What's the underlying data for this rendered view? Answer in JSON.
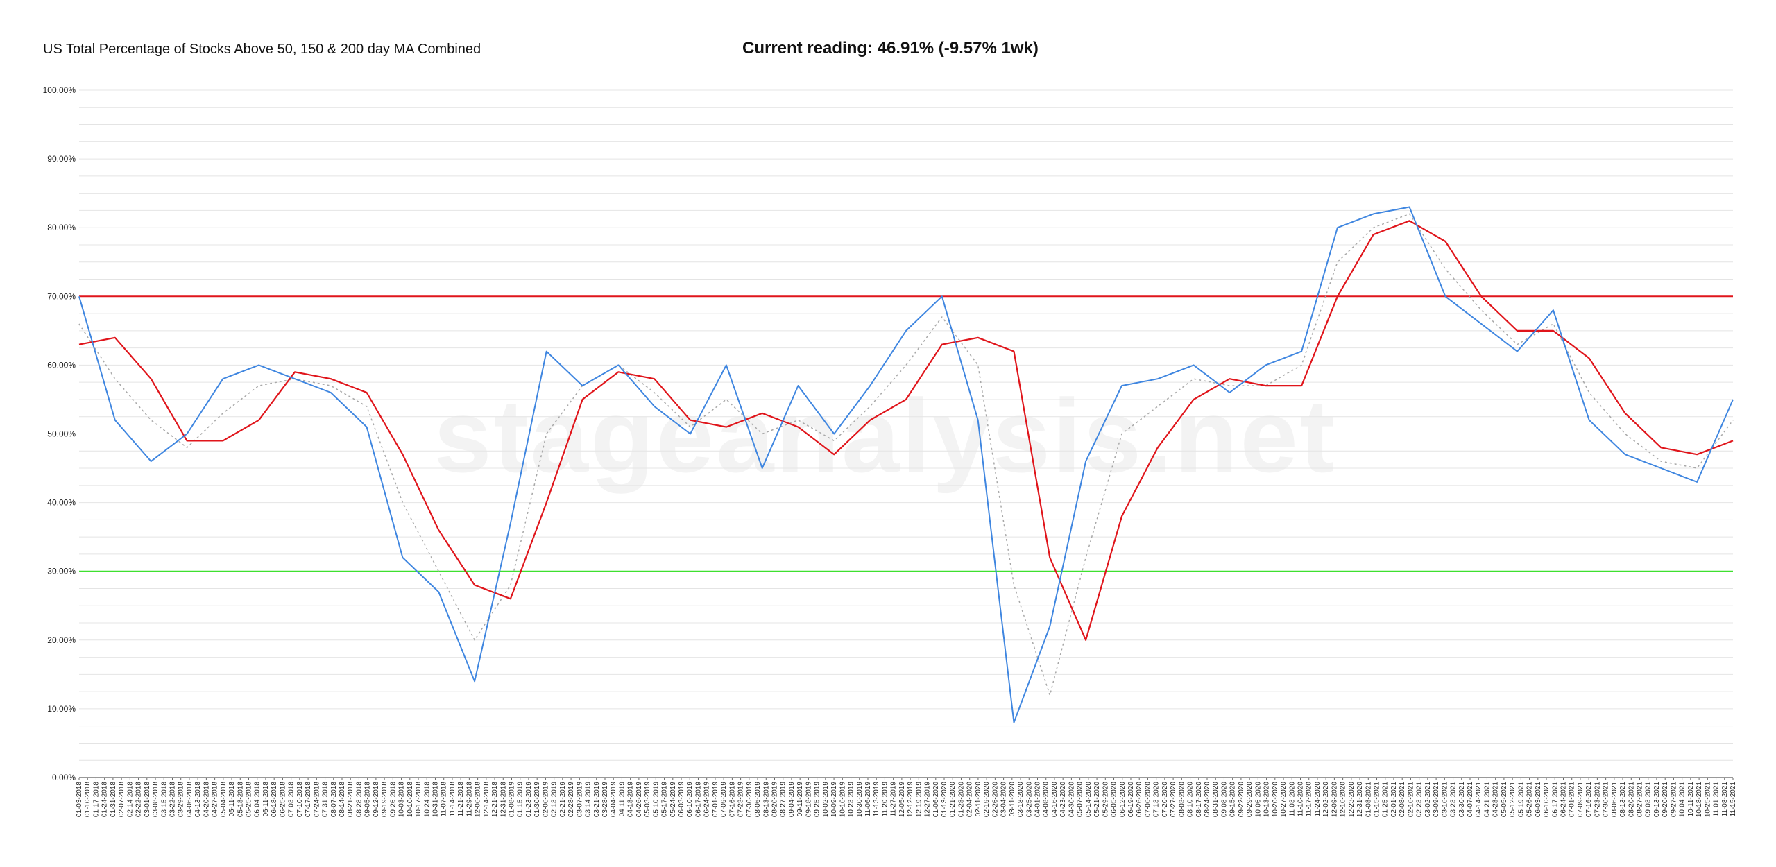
{
  "header": {
    "title": "US Total Percentage of Stocks Above 50, 150 & 200 day MA Combined",
    "current_reading": "Current reading: 46.91% (-9.57% 1wk)"
  },
  "watermark": "stageanalysis.net",
  "colors": {
    "raw": "#3f86e0",
    "ma_red": "#e0151b",
    "ma_dotted": "#a8a8a8",
    "overbought": "#e0151b",
    "oversold": "#3ee02f",
    "grid": "#e4e4e4"
  },
  "chart_data": {
    "type": "line",
    "title": "US Total Percentage of Stocks Above 50, 150 & 200 day MA Combined",
    "ylim": [
      0,
      100
    ],
    "grid": true,
    "y_ticks": [
      "0.00%",
      "10.00%",
      "20.00%",
      "30.00%",
      "40.00%",
      "50.00%",
      "60.00%",
      "70.00%",
      "80.00%",
      "90.00%",
      "100.00%"
    ],
    "reference_lines": [
      {
        "y": 70,
        "color": "#e0151b"
      },
      {
        "y": 30,
        "color": "#3ee02f"
      }
    ],
    "x_tick_labels": [
      "01-03-2018",
      "01-10-2018",
      "01-17-2018",
      "01-24-2018",
      "01-31-2018",
      "02-07-2018",
      "02-14-2018",
      "02-22-2018",
      "03-01-2018",
      "03-08-2018",
      "03-15-2018",
      "03-22-2018",
      "03-29-2018",
      "04-06-2018",
      "04-13-2018",
      "04-20-2018",
      "04-27-2018",
      "05-04-2018",
      "05-11-2018",
      "05-18-2018",
      "05-25-2018",
      "06-04-2018",
      "06-11-2018",
      "06-18-2018",
      "06-25-2018",
      "07-03-2018",
      "07-10-2018",
      "07-17-2018",
      "07-24-2018",
      "07-31-2018",
      "08-07-2018",
      "08-14-2018",
      "08-21-2018",
      "08-28-2018",
      "09-05-2018",
      "09-12-2018",
      "09-19-2018",
      "09-26-2018",
      "10-03-2018",
      "10-10-2018",
      "10-17-2018",
      "10-24-2018",
      "10-31-2018",
      "11-07-2018",
      "11-14-2018",
      "11-21-2018",
      "11-29-2018",
      "12-06-2018",
      "12-14-2018",
      "12-21-2018",
      "12-31-2018",
      "01-08-2019",
      "01-15-2019",
      "01-23-2019",
      "01-30-2019",
      "02-06-2019",
      "02-13-2019",
      "02-21-2019",
      "02-28-2019",
      "03-07-2019",
      "03-14-2019",
      "03-21-2019",
      "03-28-2019",
      "04-04-2019",
      "04-11-2019",
      "04-18-2019",
      "04-26-2019",
      "05-03-2019",
      "05-10-2019",
      "05-17-2019",
      "05-24-2019",
      "06-03-2019",
      "06-10-2019",
      "06-17-2019",
      "06-24-2019",
      "07-01-2019",
      "07-09-2019",
      "07-16-2019",
      "07-23-2019",
      "07-30-2019",
      "08-06-2019",
      "08-13-2019",
      "08-20-2019",
      "08-27-2019",
      "09-04-2019",
      "09-11-2019",
      "09-18-2019",
      "09-25-2019",
      "10-02-2019",
      "10-09-2019",
      "10-16-2019",
      "10-23-2019",
      "10-30-2019",
      "11-06-2019",
      "11-13-2019",
      "11-20-2019",
      "11-27-2019",
      "12-05-2019",
      "12-12-2019",
      "12-19-2019",
      "12-27-2019",
      "01-06-2020",
      "01-13-2020",
      "01-21-2020",
      "01-28-2020",
      "02-04-2020",
      "02-11-2020",
      "02-19-2020",
      "02-26-2020",
      "03-04-2020",
      "03-11-2020",
      "03-18-2020",
      "03-25-2020",
      "04-01-2020",
      "04-08-2020",
      "04-16-2020",
      "04-23-2020",
      "04-30-2020",
      "05-07-2020",
      "05-14-2020",
      "05-21-2020",
      "05-29-2020",
      "06-05-2020",
      "06-12-2020",
      "06-19-2020",
      "06-26-2020",
      "07-06-2020",
      "07-13-2020",
      "07-20-2020",
      "07-27-2020",
      "08-03-2020",
      "08-10-2020",
      "08-17-2020",
      "08-24-2020",
      "08-31-2020",
      "09-08-2020",
      "09-15-2020",
      "09-22-2020",
      "09-29-2020",
      "10-06-2020",
      "10-13-2020",
      "10-20-2020",
      "10-27-2020",
      "11-03-2020",
      "11-10-2020",
      "11-17-2020",
      "11-24-2020",
      "12-02-2020",
      "12-09-2020",
      "12-16-2020",
      "12-23-2020",
      "12-31-2020",
      "01-08-2021",
      "01-15-2021",
      "01-25-2021",
      "02-01-2021",
      "02-08-2021",
      "02-16-2021",
      "02-23-2021",
      "03-02-2021",
      "03-09-2021",
      "03-16-2021",
      "03-23-2021",
      "03-30-2021",
      "04-07-2021",
      "04-14-2021",
      "04-21-2021",
      "04-28-2021",
      "05-05-2021",
      "05-12-2021",
      "05-19-2021",
      "05-26-2021",
      "06-03-2021",
      "06-10-2021",
      "06-17-2021",
      "06-24-2021",
      "07-01-2021",
      "07-09-2021",
      "07-16-2021",
      "07-23-2021",
      "07-30-2021",
      "08-06-2021",
      "08-13-2021",
      "08-20-2021",
      "08-27-2021",
      "09-03-2021",
      "09-13-2021",
      "09-20-2021",
      "09-27-2021",
      "10-04-2021",
      "10-11-2021",
      "10-18-2021",
      "10-25-2021",
      "11-01-2021",
      "11-08-2021",
      "11-15-2021"
    ],
    "x": [
      "2018-01",
      "2018-02",
      "2018-03",
      "2018-04",
      "2018-05",
      "2018-06",
      "2018-07",
      "2018-08",
      "2018-09",
      "2018-10",
      "2018-11",
      "2018-12",
      "2019-01",
      "2019-02",
      "2019-03",
      "2019-04",
      "2019-05",
      "2019-06",
      "2019-07",
      "2019-08",
      "2019-09",
      "2019-10",
      "2019-11",
      "2019-12",
      "2020-01",
      "2020-02",
      "2020-03",
      "2020-04",
      "2020-05",
      "2020-06",
      "2020-07",
      "2020-08",
      "2020-09",
      "2020-10",
      "2020-11",
      "2020-12",
      "2021-01",
      "2021-02",
      "2021-03",
      "2021-04",
      "2021-05",
      "2021-06",
      "2021-07",
      "2021-08",
      "2021-09",
      "2021-10",
      "2021-11"
    ],
    "series": [
      {
        "values": [
          70,
          52,
          46,
          50,
          58,
          60,
          58,
          56,
          51,
          32,
          27,
          14,
          37,
          62,
          57,
          60,
          54,
          50,
          60,
          45,
          57,
          50,
          57,
          65,
          70,
          52,
          8,
          22,
          46,
          57,
          58,
          60,
          56,
          60,
          62,
          80,
          82,
          83,
          70,
          66,
          62,
          68,
          52,
          47,
          45,
          43,
          55
        ]
      },
      {
        "values": [
          63,
          64,
          58,
          49,
          49,
          52,
          59,
          58,
          56,
          47,
          36,
          28,
          26,
          40,
          55,
          59,
          58,
          52,
          51,
          53,
          51,
          47,
          52,
          55,
          63,
          64,
          62,
          32,
          20,
          38,
          48,
          55,
          58,
          57,
          57,
          70,
          79,
          81,
          78,
          70,
          65,
          65,
          61,
          53,
          48,
          47,
          49
        ]
      },
      {
        "values": [
          66,
          58,
          52,
          48,
          53,
          57,
          58,
          57,
          54,
          40,
          30,
          20,
          28,
          50,
          57,
          60,
          56,
          51,
          55,
          50,
          52,
          49,
          54,
          60,
          67,
          60,
          28,
          12,
          32,
          50,
          54,
          58,
          57,
          57,
          60,
          75,
          80,
          82,
          74,
          68,
          63,
          66,
          56,
          50,
          46,
          45,
          52
        ]
      }
    ]
  }
}
